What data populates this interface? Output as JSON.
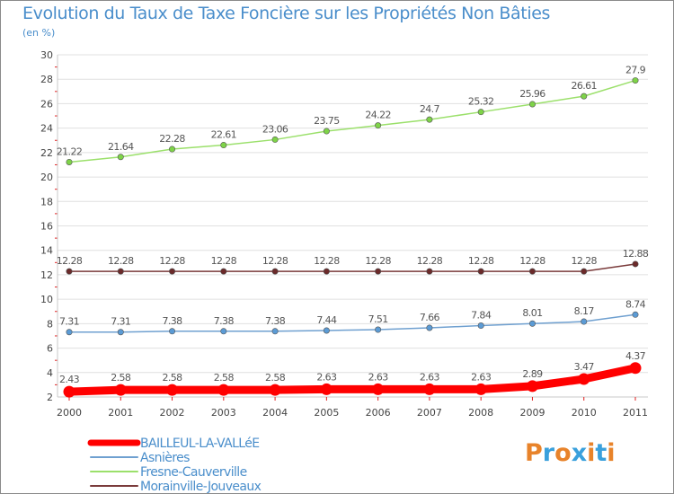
{
  "title": "Evolution du Taux de Taxe Foncière sur les Propriétés Non Bâties",
  "subtitle": "(en %)",
  "logo": {
    "text": "Proxiti",
    "letters": [
      "P",
      "r",
      "o",
      "x",
      "i",
      "t",
      "i"
    ],
    "colors": [
      "#e8832a",
      "#3aa0dc",
      "#e8832a",
      "#3aa0dc",
      "#e8832a",
      "#3aa0dc",
      "#e8832a"
    ]
  },
  "colors": {
    "axis": "#c8c8c8",
    "grid": "#e0e0e0",
    "tick_text": "#444444",
    "title": "#4a8ecb"
  },
  "chart_data": {
    "type": "line",
    "title": "Evolution du Taux de Taxe Foncière sur les Propriétés Non Bâties",
    "ylabel": "(en %)",
    "xlabel": "",
    "x": [
      "2000",
      "2001",
      "2002",
      "2003",
      "2004",
      "2005",
      "2006",
      "2007",
      "2008",
      "2009",
      "2010",
      "2011"
    ],
    "ylim": [
      2,
      30
    ],
    "yticks": [
      2,
      4,
      6,
      8,
      10,
      12,
      14,
      16,
      18,
      20,
      22,
      24,
      26,
      28,
      30
    ],
    "legend_position": "bottom-left",
    "series": [
      {
        "name": "BAILLEUL-LA-VALLéE",
        "color": "#ff0000",
        "marker_color": "#ff0000",
        "emphasis": true,
        "values": [
          2.43,
          2.58,
          2.58,
          2.58,
          2.58,
          2.63,
          2.63,
          2.63,
          2.63,
          2.89,
          3.47,
          4.37
        ],
        "labels": [
          "2.43",
          "2.58",
          "2.58",
          "2.58",
          "2.58",
          "2.63",
          "2.63",
          "2.63",
          "2.63",
          "2.89",
          "3.47",
          "4.37"
        ]
      },
      {
        "name": "Asnières",
        "color": "#6fa0d0",
        "marker_color": "#5b9bd5",
        "emphasis": false,
        "values": [
          7.31,
          7.31,
          7.38,
          7.38,
          7.38,
          7.44,
          7.51,
          7.66,
          7.84,
          8.01,
          8.17,
          8.74
        ],
        "labels": [
          "7.31",
          "7.31",
          "7.38",
          "7.38",
          "7.38",
          "7.44",
          "7.51",
          "7.66",
          "7.84",
          "8.01",
          "8.17",
          "8.74"
        ]
      },
      {
        "name": "Fresne-Cauverville",
        "color": "#9be06b",
        "marker_color": "#7ed348",
        "emphasis": false,
        "values": [
          21.22,
          21.64,
          22.28,
          22.61,
          23.06,
          23.75,
          24.22,
          24.7,
          25.32,
          25.96,
          26.61,
          27.9
        ],
        "labels": [
          "21.22",
          "21.64",
          "22.28",
          "22.61",
          "23.06",
          "23.75",
          "24.22",
          "24.7",
          "25.32",
          "25.96",
          "26.61",
          "27.9"
        ]
      },
      {
        "name": "Morainville-Jouveaux",
        "color": "#7a3b3b",
        "marker_color": "#6b2a2a",
        "emphasis": false,
        "values": [
          12.28,
          12.28,
          12.28,
          12.28,
          12.28,
          12.28,
          12.28,
          12.28,
          12.28,
          12.28,
          12.28,
          12.88
        ],
        "labels": [
          "12.28",
          "12.28",
          "12.28",
          "12.28",
          "12.28",
          "12.28",
          "12.28",
          "12.28",
          "12.28",
          "12.28",
          "12.28",
          "12.88"
        ]
      }
    ]
  }
}
